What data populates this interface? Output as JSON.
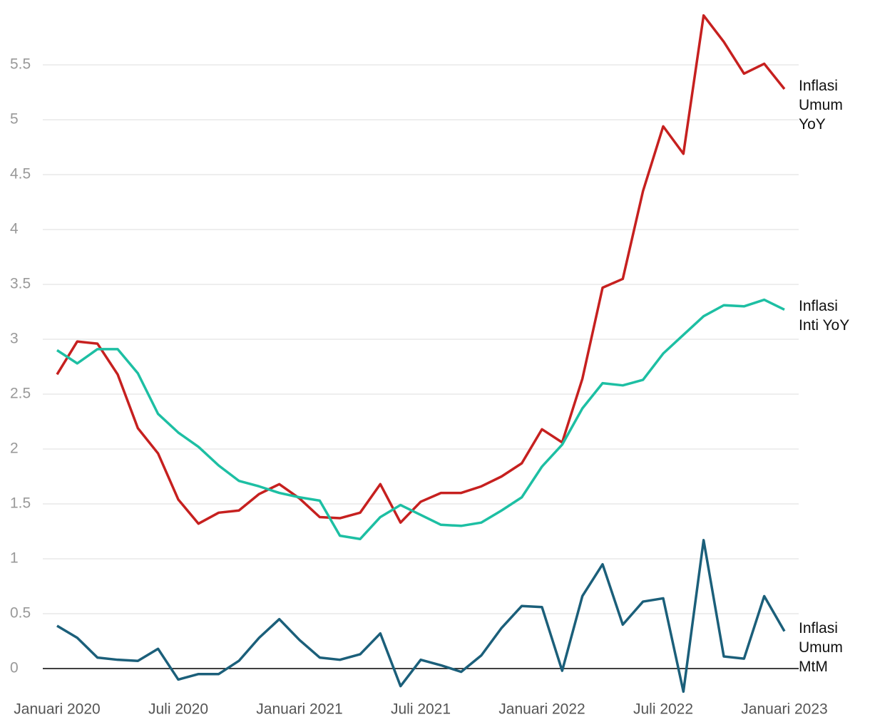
{
  "chart_data": {
    "type": "line",
    "x": [
      "2020-01",
      "2020-02",
      "2020-03",
      "2020-04",
      "2020-05",
      "2020-06",
      "2020-07",
      "2020-08",
      "2020-09",
      "2020-10",
      "2020-11",
      "2020-12",
      "2021-01",
      "2021-02",
      "2021-03",
      "2021-04",
      "2021-05",
      "2021-06",
      "2021-07",
      "2021-08",
      "2021-09",
      "2021-10",
      "2021-11",
      "2021-12",
      "2022-01",
      "2022-02",
      "2022-03",
      "2022-04",
      "2022-05",
      "2022-06",
      "2022-07",
      "2022-08",
      "2022-09",
      "2022-10",
      "2022-11",
      "2022-12",
      "2023-01"
    ],
    "series": [
      {
        "name": "Inflasi Umum YoY",
        "color": "#c6201f",
        "values": [
          2.68,
          2.98,
          2.96,
          2.68,
          2.19,
          1.96,
          1.54,
          1.32,
          1.42,
          1.44,
          1.59,
          1.68,
          1.55,
          1.38,
          1.37,
          1.42,
          1.68,
          1.33,
          1.52,
          1.6,
          1.6,
          1.66,
          1.75,
          1.87,
          2.18,
          2.06,
          2.64,
          3.47,
          3.55,
          4.35,
          4.94,
          4.69,
          5.95,
          5.71,
          5.42,
          5.51,
          5.28
        ]
      },
      {
        "name": "Inflasi Inti YoY",
        "color": "#1dbfa3",
        "values": [
          2.9,
          2.78,
          2.91,
          2.91,
          2.69,
          2.32,
          2.15,
          2.02,
          1.85,
          1.71,
          1.66,
          1.6,
          1.56,
          1.53,
          1.21,
          1.18,
          1.38,
          1.49,
          1.4,
          1.31,
          1.3,
          1.33,
          1.44,
          1.56,
          1.84,
          2.04,
          2.37,
          2.6,
          2.58,
          2.63,
          2.87,
          3.04,
          3.21,
          3.31,
          3.3,
          3.36,
          3.27
        ]
      },
      {
        "name": "Inflasi Umum MtM",
        "color": "#1b5f7a",
        "values": [
          0.39,
          0.28,
          0.1,
          0.08,
          0.07,
          0.18,
          -0.1,
          -0.05,
          -0.05,
          0.07,
          0.28,
          0.45,
          0.26,
          0.1,
          0.08,
          0.13,
          0.32,
          -0.16,
          0.08,
          0.03,
          -0.03,
          0.12,
          0.37,
          0.57,
          0.56,
          -0.02,
          0.66,
          0.95,
          0.4,
          0.61,
          0.64,
          -0.21,
          1.17,
          0.11,
          0.09,
          0.66,
          0.34
        ]
      }
    ],
    "xticks": [
      {
        "value": "2020-01",
        "label": "Januari 2020"
      },
      {
        "value": "2020-07",
        "label": "Juli 2020"
      },
      {
        "value": "2021-01",
        "label": "Januari 2021"
      },
      {
        "value": "2021-07",
        "label": "Juli 2021"
      },
      {
        "value": "2022-01",
        "label": "Januari 2022"
      },
      {
        "value": "2022-07",
        "label": "Juli 2022"
      },
      {
        "value": "2023-01",
        "label": "Januari 2023"
      }
    ],
    "ylim": [
      -0.25,
      6
    ],
    "yticks": [
      0,
      0.5,
      1,
      1.5,
      2,
      2.5,
      3,
      3.5,
      4,
      4.5,
      5,
      5.5
    ],
    "grid": true
  }
}
